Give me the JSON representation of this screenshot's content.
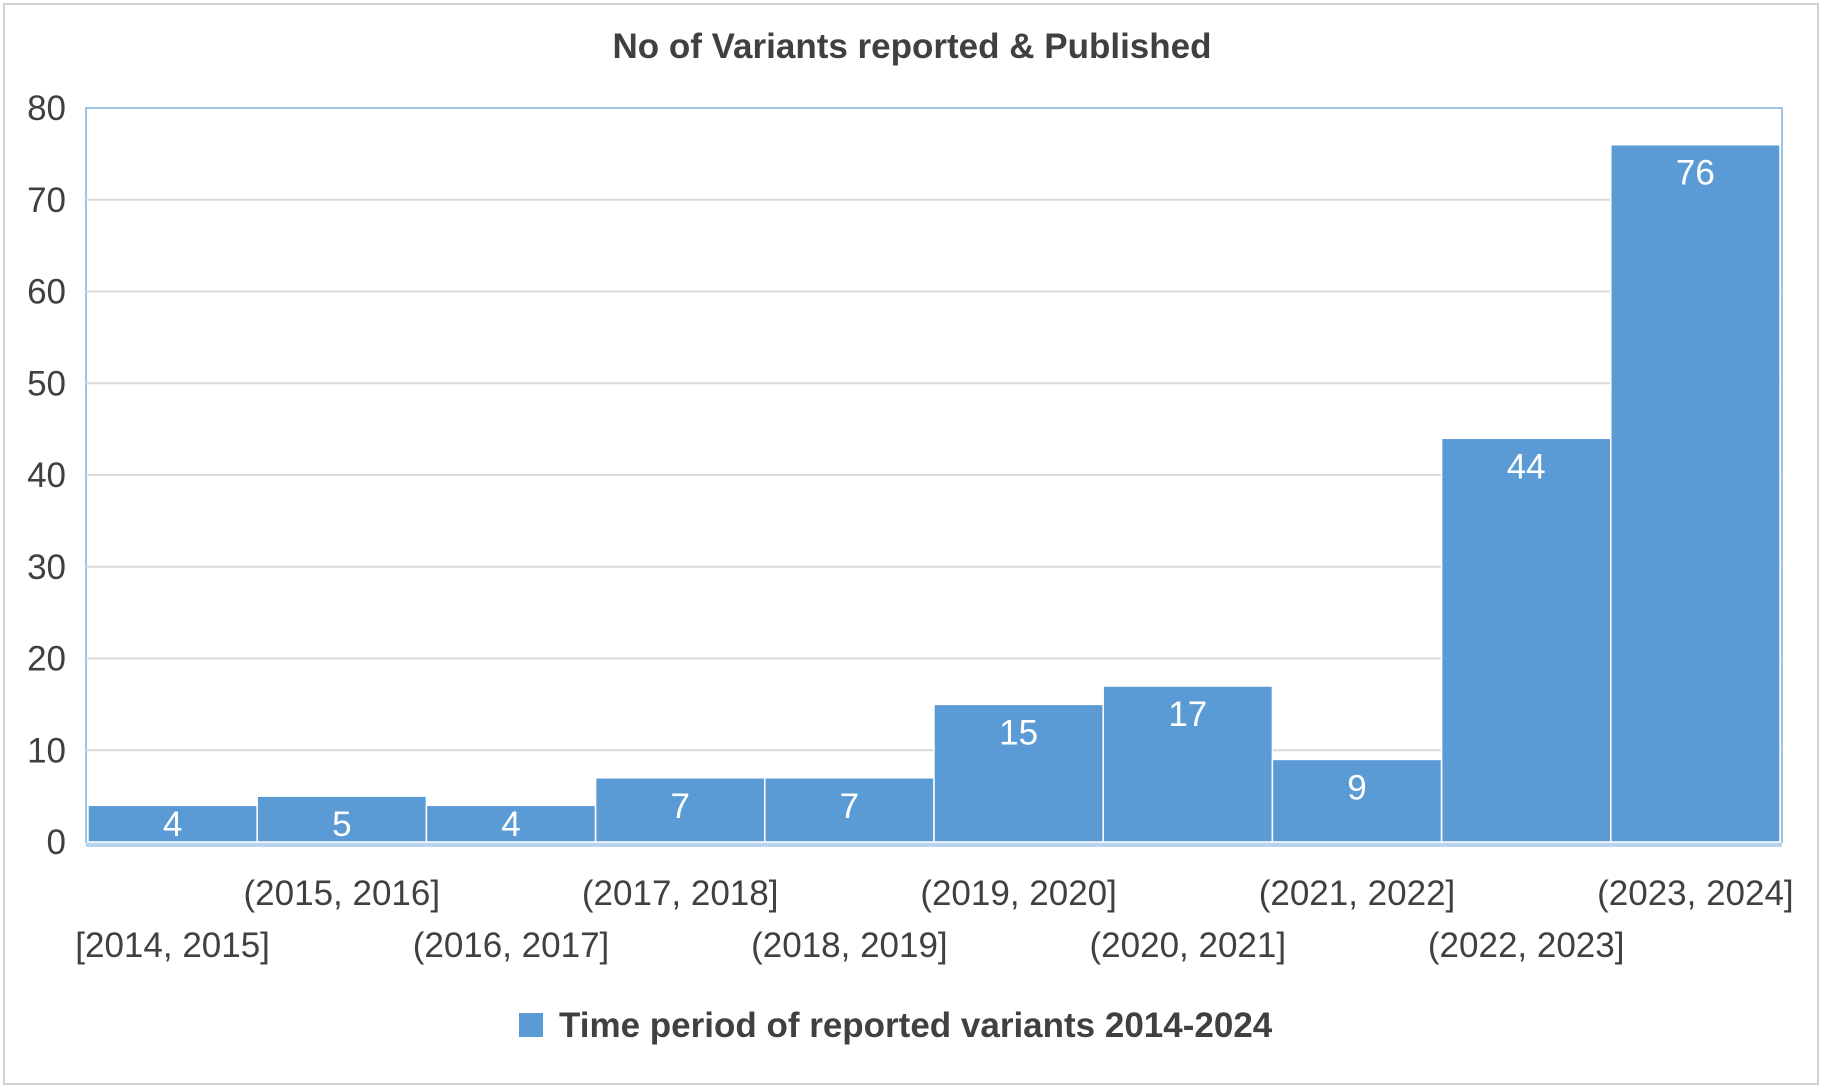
{
  "chart_data": {
    "type": "bar",
    "title": "No of Variants reported & Published",
    "categories": [
      "[2014, 2015]",
      "(2015, 2016]",
      "(2016, 2017]",
      "(2017, 2018]",
      "(2018, 2019]",
      "(2019, 2020]",
      "(2020, 2021]",
      "(2021, 2022]",
      "(2022, 2023]",
      "(2023, 2024]"
    ],
    "series": [
      {
        "name": "Time period of reported variants 2014-2024",
        "values": [
          4,
          5,
          4,
          7,
          7,
          15,
          17,
          9,
          44,
          76
        ],
        "color": "#5b9bd5"
      }
    ],
    "data_labels": true,
    "ylim": [
      0,
      80
    ],
    "yticks": [
      0,
      10,
      20,
      30,
      40,
      50,
      60,
      70,
      80
    ],
    "grid": true,
    "legend_position": "bottom",
    "bar_gap": 0,
    "colors": {
      "bar": "#5b9bd5",
      "bar_edge": "#ffffff",
      "grid": "#d9d9d9",
      "plot_border": "#9dc3e6",
      "text": "#404040",
      "data_label": "#ffffff"
    }
  }
}
